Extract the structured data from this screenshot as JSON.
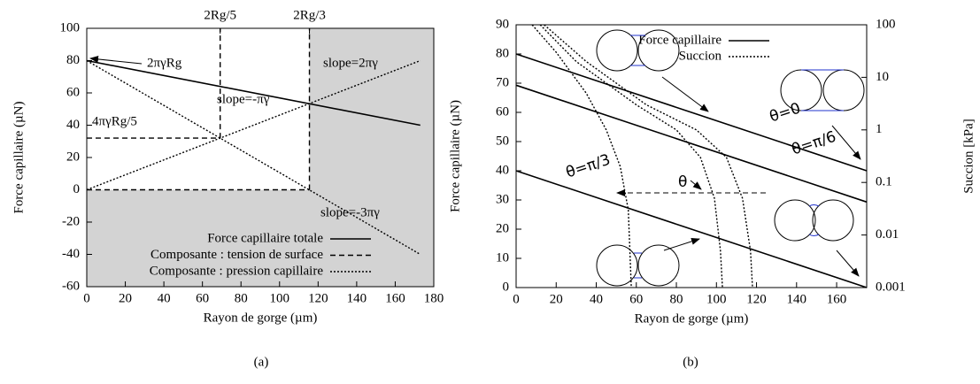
{
  "chart_data": [
    {
      "type": "line",
      "xlabel": "Rayon de gorge (µm)",
      "ylabel": "Force capillaire (µN)",
      "caption": "(a)",
      "xlim": [
        0,
        180
      ],
      "xticks": [
        0,
        20,
        40,
        60,
        80,
        100,
        120,
        140,
        160,
        180
      ],
      "ylim": [
        -60,
        100
      ],
      "yticks": [
        -60,
        -40,
        -20,
        0,
        20,
        40,
        60,
        80,
        100
      ],
      "x2ticks": [
        {
          "value": 69.2,
          "label": "2Rg/5"
        },
        {
          "value": 115.5,
          "label": "2Rg/3"
        }
      ],
      "shaded": true,
      "shade_color": "#d3d3d3",
      "legend": "lower right",
      "series": [
        {
          "name": "Force capillaire totale",
          "color": "#000000",
          "style": "solid",
          "x": [
            0,
            173
          ],
          "values": [
            80,
            40
          ]
        },
        {
          "name": "Composante : tension de surface",
          "color": "#000000",
          "style": "dashed",
          "x": [
            0,
            115.5,
            115.5,
            0,
            69.2,
            69.2,
            69.2,
            69.2,
            115.5,
            115.5,
            115.5
          ],
          "values": [
            0,
            0,
            null,
            32,
            32,
            null,
            32,
            100,
            null,
            0,
            100
          ]
        },
        {
          "name": "Composante : pression capillaire",
          "color": "#000000",
          "style": "dotted",
          "x": [
            0,
            173,
            173,
            0,
            173
          ],
          "values": [
            80,
            -40,
            null,
            0,
            80
          ]
        }
      ],
      "annotations": [
        "2πγRg",
        "slope=-πγ",
        "slope=2πγ",
        "4πγRg/5",
        "slope=-3πγ"
      ]
    },
    {
      "type": "line",
      "xlabel": "Rayon de gorge (µm)",
      "ylabel": "Force capillaire (µN)",
      "y2label": "Succion [kPa]",
      "caption": "(b)",
      "xlim": [
        0,
        175
      ],
      "xticks": [
        0,
        20,
        40,
        60,
        80,
        100,
        120,
        140,
        160
      ],
      "ylim": [
        0,
        90
      ],
      "yticks": [
        0,
        10,
        20,
        30,
        40,
        50,
        60,
        70,
        80,
        90
      ],
      "y2lim": [
        0.001,
        100
      ],
      "y2ticks": [
        0.001,
        0.01,
        0.1,
        1,
        10,
        100
      ],
      "y2scale": "log",
      "legend": "upper center",
      "series": [
        {
          "name": "Force capillaire",
          "color": "#000000",
          "style": "solid",
          "x": [
            0,
            175,
            175,
            0,
            175,
            175,
            0,
            175
          ],
          "values": [
            80,
            40,
            null,
            69.3,
            29.3,
            null,
            40,
            0
          ]
        },
        {
          "name": "Succion",
          "color": "#000000",
          "style": "dotted",
          "axis": "y2",
          "x": [
            8,
            20,
            35,
            45,
            52,
            56,
            57.5,
            57.5,
            12,
            30,
            60,
            80,
            92,
            99,
            102,
            103,
            103,
            14,
            35,
            65,
            90,
            105,
            113,
            117,
            118
          ],
          "values": [
            100,
            30,
            5,
            1,
            0.2,
            0.03,
            0.001,
            null,
            100,
            20,
            3,
            1,
            0.3,
            0.05,
            0.005,
            0.001,
            null,
            100,
            20,
            3,
            1,
            0.3,
            0.05,
            0.005,
            0.001
          ]
        }
      ],
      "annotations": [
        "θ=0",
        "θ=π/6",
        "θ=π/3",
        "θ"
      ]
    }
  ]
}
